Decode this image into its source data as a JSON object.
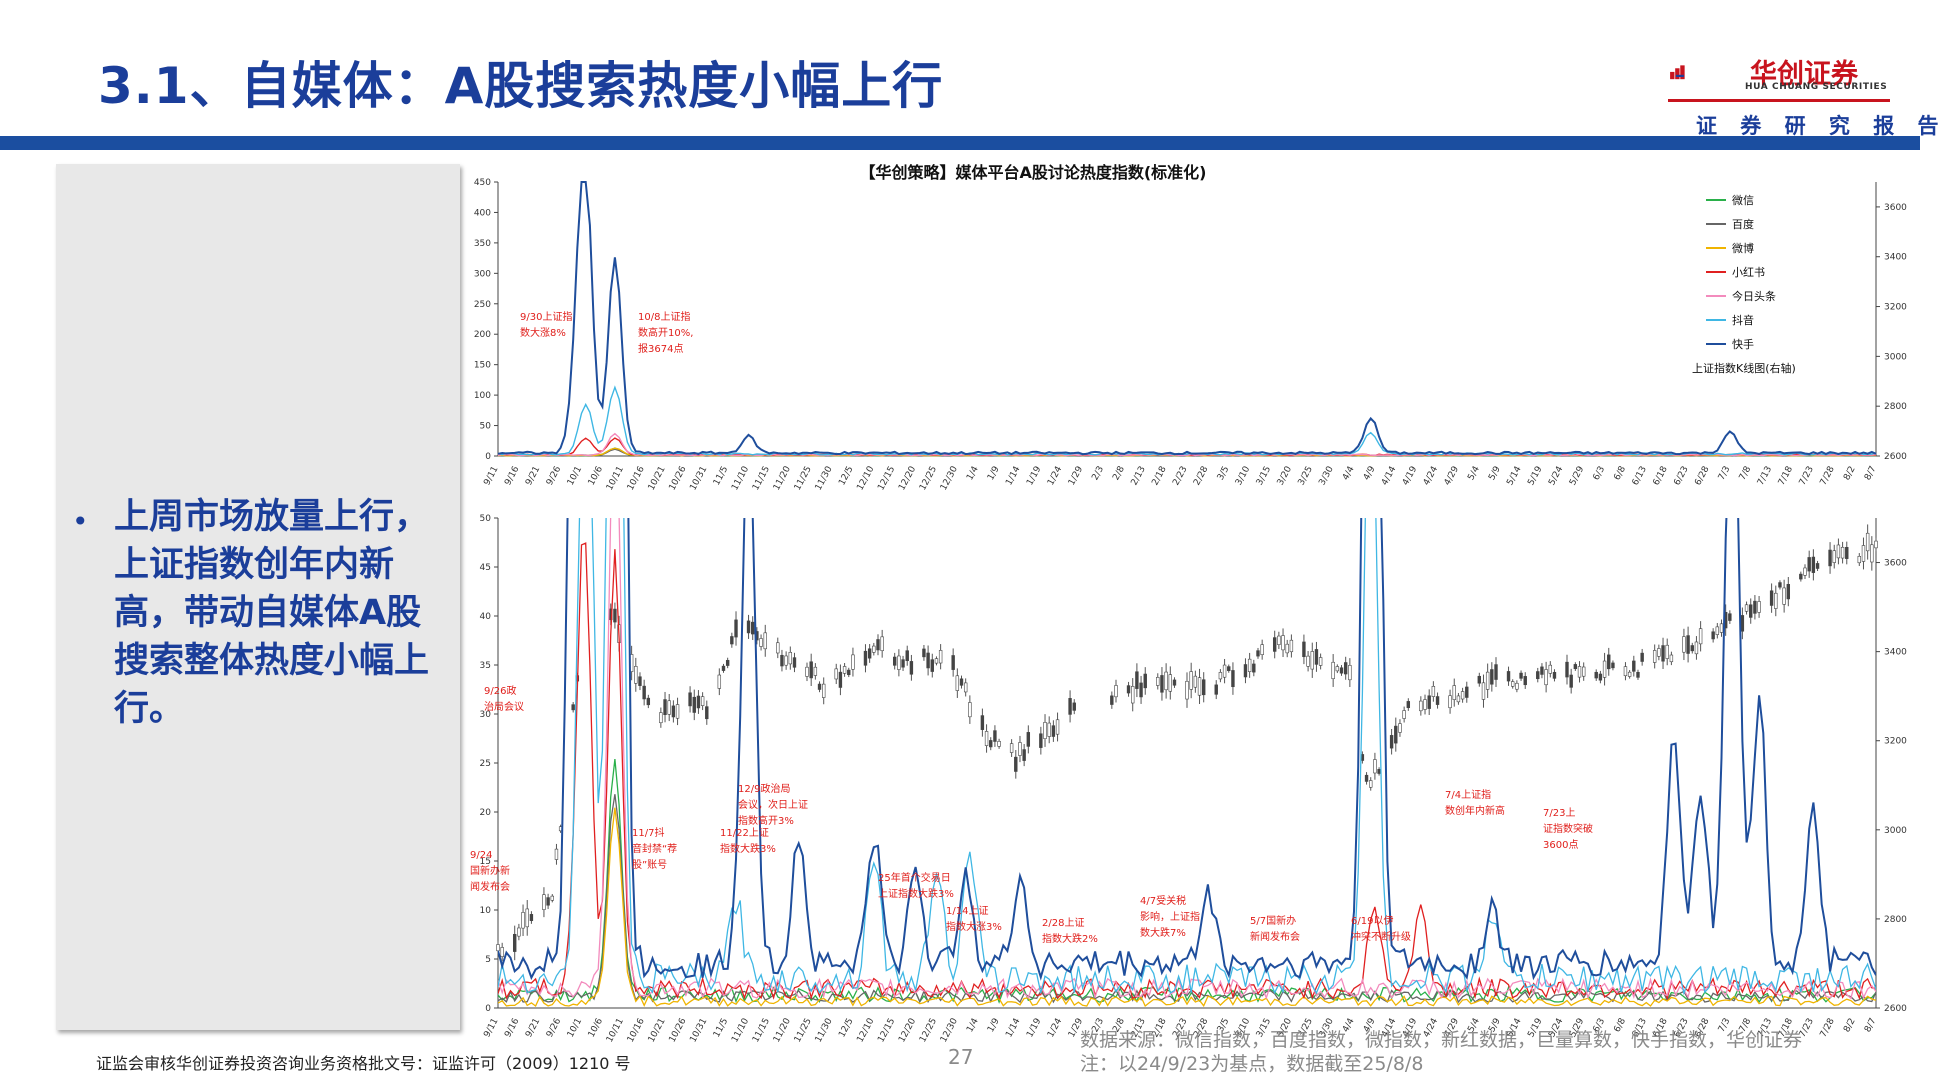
{
  "header": {
    "title": "3.1、自媒体：A股搜索热度小幅上行",
    "logo_name": "华创证券",
    "logo_en": "HUA CHUANG SECURITIES",
    "report_tag": "证 券 研 究 报 告"
  },
  "summary": {
    "bullet": "上周市场放量上行，上证指数创年内新高，带动自媒体A股搜索整体热度小幅上行。"
  },
  "footer": {
    "license": "证监会审核华创证券投资咨询业务资格批文号：证监许可（2009）1210 号",
    "page": "27",
    "source": "数据来源：微信指数，百度指数，微指数，新红数据，巨量算数，快手指数，华创证券",
    "note": "注：以24/9/23为基点，数据截至25/8/8"
  },
  "colors": {
    "brand_blue": "#1b3e9a",
    "brand_red": "#c8141e",
    "annotation": "#e0201c"
  },
  "chart_data": [
    {
      "type": "line",
      "title": "【华创策略】媒体平台A股讨论热度指数(标准化)",
      "ylim": [
        0,
        450
      ],
      "y_ticks": [
        0,
        50,
        100,
        150,
        200,
        250,
        300,
        350,
        400,
        450
      ],
      "y2lim": [
        2600,
        3700
      ],
      "y2_ticks": [
        2600,
        2800,
        3000,
        3200,
        3400,
        3600
      ],
      "x_ticks": [
        "9/11",
        "9/16",
        "9/21",
        "9/26",
        "10/1",
        "10/6",
        "10/11",
        "10/16",
        "10/21",
        "10/26",
        "10/31",
        "11/5",
        "11/10",
        "11/15",
        "11/20",
        "11/25",
        "11/30",
        "12/5",
        "12/10",
        "12/15",
        "12/20",
        "12/25",
        "12/30",
        "1/4",
        "1/9",
        "1/14",
        "1/19",
        "1/24",
        "1/29",
        "2/3",
        "2/8",
        "2/13",
        "2/18",
        "2/23",
        "2/28",
        "3/5",
        "3/10",
        "3/15",
        "3/20",
        "3/25",
        "3/30",
        "4/4",
        "4/9",
        "4/14",
        "4/19",
        "4/24",
        "4/29",
        "5/4",
        "5/9",
        "5/14",
        "5/19",
        "5/24",
        "5/29",
        "6/3",
        "6/8",
        "6/13",
        "6/18",
        "6/23",
        "6/28",
        "7/3",
        "7/8",
        "7/13",
        "7/18",
        "7/23",
        "7/28",
        "8/2",
        "8/7"
      ],
      "legend": [
        "微信",
        "百度",
        "微博",
        "小红书",
        "今日头条",
        "抖音",
        "快手",
        "上证指数K线图(右轴)"
      ],
      "legend_position": "top-right",
      "series": [
        {
          "name": "快手",
          "color": "#1f4e9c",
          "peaks": [
            {
              "x": "9/30",
              "y": 140
            },
            {
              "x": "10/2",
              "y": 425
            },
            {
              "x": "10/9",
              "y": 320
            },
            {
              "x": "11/10",
              "y": 28
            },
            {
              "x": "4/8",
              "y": 58
            },
            {
              "x": "7/3",
              "y": 35
            }
          ]
        },
        {
          "name": "抖音",
          "color": "#3fb7e4",
          "peaks": [
            {
              "x": "10/2",
              "y": 82
            },
            {
              "x": "10/9",
              "y": 110
            },
            {
              "x": "4/8",
              "y": 35
            }
          ]
        },
        {
          "name": "小红书",
          "color": "#e02020",
          "peaks": [
            {
              "x": "10/2",
              "y": 28
            },
            {
              "x": "10/9",
              "y": 28
            }
          ]
        },
        {
          "name": "今日头条",
          "color": "#f38bbd",
          "peaks": [
            {
              "x": "10/9",
              "y": 35
            }
          ]
        },
        {
          "name": "微信",
          "color": "#2ab04a",
          "peaks": [
            {
              "x": "10/9",
              "y": 12
            }
          ]
        },
        {
          "name": "百度",
          "color": "#666666",
          "peaks": [
            {
              "x": "10/9",
              "y": 10
            }
          ]
        },
        {
          "name": "微博",
          "color": "#f0b400",
          "peaks": [
            {
              "x": "10/9",
              "y": 12
            }
          ]
        }
      ],
      "annotations": [
        {
          "x": "9/30",
          "text": "9/30上证指数大涨8%"
        },
        {
          "x": "10/8",
          "text": "10/8上证指数高开10%，报3674点"
        }
      ]
    },
    {
      "type": "line",
      "title": "",
      "ylim": [
        0,
        50
      ],
      "y_ticks": [
        0,
        5,
        10,
        15,
        20,
        25,
        30,
        35,
        40,
        45,
        50
      ],
      "y2lim": [
        2600,
        3700
      ],
      "y2_ticks": [
        2600,
        2800,
        3000,
        3200,
        3400,
        3600
      ],
      "x_ticks": [
        "9/11",
        "9/16",
        "9/21",
        "9/26",
        "10/1",
        "10/6",
        "10/11",
        "10/16",
        "10/21",
        "10/26",
        "10/31",
        "11/5",
        "11/10",
        "11/15",
        "11/20",
        "11/25",
        "11/30",
        "12/5",
        "12/10",
        "12/15",
        "12/20",
        "12/25",
        "12/30",
        "1/4",
        "1/9",
        "1/14",
        "1/19",
        "1/24",
        "1/29",
        "2/3",
        "2/8",
        "2/13",
        "2/18",
        "2/23",
        "2/28",
        "3/5",
        "3/10",
        "3/15",
        "3/20",
        "3/25",
        "3/30",
        "4/4",
        "4/9",
        "4/14",
        "4/19",
        "4/24",
        "4/29",
        "5/4",
        "5/9",
        "5/14",
        "5/19",
        "5/24",
        "5/29",
        "6/3",
        "6/8",
        "6/13",
        "6/18",
        "6/23",
        "6/28",
        "7/3",
        "7/8",
        "7/13",
        "7/18",
        "7/23",
        "7/28",
        "8/2",
        "8/7"
      ],
      "shanghai_index": [
        {
          "x": "9/11",
          "y": 2720
        },
        {
          "x": "9/24",
          "y": 2860
        },
        {
          "x": "9/30",
          "y": 3340
        },
        {
          "x": "10/8",
          "y": 3490
        },
        {
          "x": "10/18",
          "y": 3270
        },
        {
          "x": "10/31",
          "y": 3280
        },
        {
          "x": "11/8",
          "y": 3460
        },
        {
          "x": "11/20",
          "y": 3370
        },
        {
          "x": "11/30",
          "y": 3320
        },
        {
          "x": "12/10",
          "y": 3420
        },
        {
          "x": "12/20",
          "y": 3370
        },
        {
          "x": "12/27",
          "y": 3400
        },
        {
          "x": "1/6",
          "y": 3210
        },
        {
          "x": "1/13",
          "y": 3160
        },
        {
          "x": "1/24",
          "y": 3250
        },
        {
          "x": "2/10",
          "y": 3320
        },
        {
          "x": "2/28",
          "y": 3320
        },
        {
          "x": "3/18",
          "y": 3420
        },
        {
          "x": "4/3",
          "y": 3350
        },
        {
          "x": "4/7",
          "y": 3100
        },
        {
          "x": "4/18",
          "y": 3280
        },
        {
          "x": "5/9",
          "y": 3340
        },
        {
          "x": "5/30",
          "y": 3350
        },
        {
          "x": "6/13",
          "y": 3370
        },
        {
          "x": "6/27",
          "y": 3420
        },
        {
          "x": "7/10",
          "y": 3510
        },
        {
          "x": "7/24",
          "y": 3590
        },
        {
          "x": "8/7",
          "y": 3640
        }
      ],
      "annotations": [
        {
          "x": "9/24",
          "text": "9/24国新办新闻发布会"
        },
        {
          "x": "9/26",
          "text": "9/26政治局会议"
        },
        {
          "x": "11/7",
          "text": "11/7抖音封禁“荐股”账号"
        },
        {
          "x": "11/22",
          "text": "11/22上证指数大跌3%"
        },
        {
          "x": "12/9",
          "text": "12/9政治局会议，次日上证指数高开3%"
        },
        {
          "x": "1/2",
          "text": "25年首个交易日上证指数大跌3%"
        },
        {
          "x": "1/14",
          "text": "1/14上证指数大涨3%"
        },
        {
          "x": "2/28",
          "text": "2/28上证指数大跌2%"
        },
        {
          "x": "4/7",
          "text": "4/7受关税影响，上证指数大跌7%"
        },
        {
          "x": "5/7",
          "text": "5/7国新办新闻发布会"
        },
        {
          "x": "6/19",
          "text": "6/19以伊冲突不断升级"
        },
        {
          "x": "7/4",
          "text": "7/4上证指数创年内新高"
        },
        {
          "x": "7/23",
          "text": "7/23上证指数突破3600点"
        }
      ]
    }
  ]
}
